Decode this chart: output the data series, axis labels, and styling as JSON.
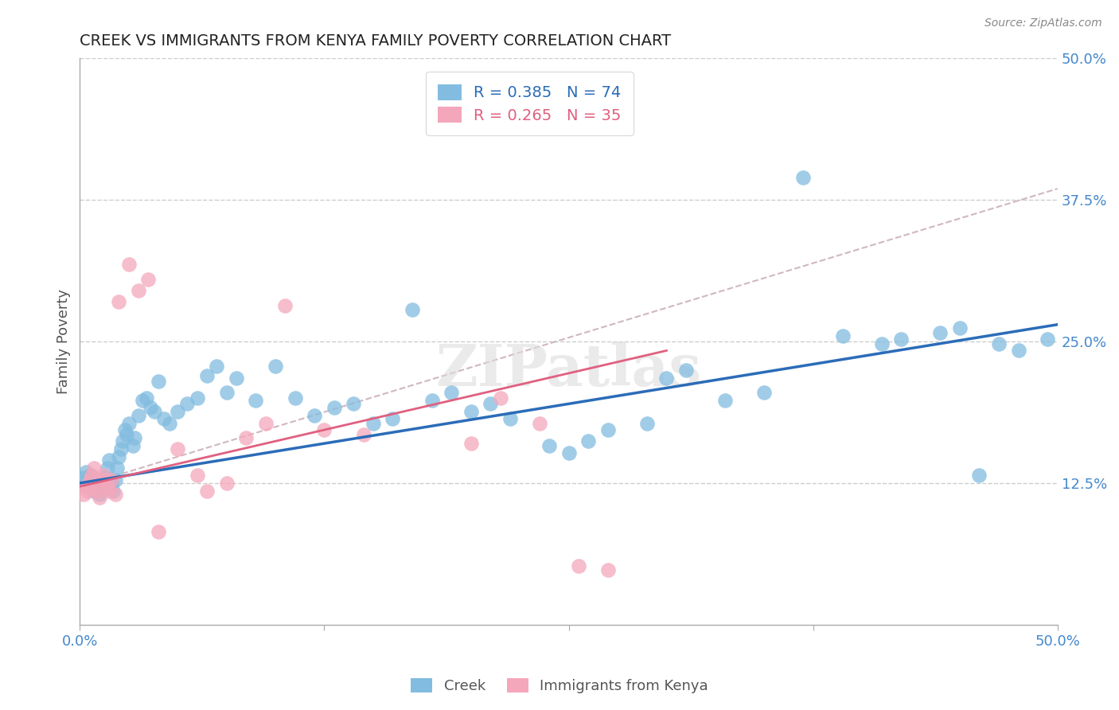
{
  "title": "CREEK VS IMMIGRANTS FROM KENYA FAMILY POVERTY CORRELATION CHART",
  "source": "Source: ZipAtlas.com",
  "ylabel": "Family Poverty",
  "xlim": [
    0.0,
    0.5
  ],
  "ylim": [
    0.0,
    0.5
  ],
  "creek_color": "#82bce0",
  "kenya_color": "#f4a7bb",
  "creek_line_color": "#2b6cb8",
  "kenya_line_color": "#e06080",
  "dashed_line_color": "#ccb0b8",
  "creek_R": 0.385,
  "creek_N": 74,
  "kenya_R": 0.265,
  "kenya_N": 35,
  "title_color": "#222222",
  "tick_color": "#4488cc",
  "grid_color": "#cccccc",
  "background_color": "#ffffff",
  "watermark": "ZIPatlas",
  "creek_x": [
    0.002,
    0.003,
    0.004,
    0.005,
    0.006,
    0.007,
    0.008,
    0.009,
    0.01,
    0.011,
    0.012,
    0.013,
    0.014,
    0.015,
    0.016,
    0.017,
    0.018,
    0.019,
    0.02,
    0.021,
    0.022,
    0.023,
    0.024,
    0.025,
    0.027,
    0.028,
    0.03,
    0.032,
    0.034,
    0.036,
    0.038,
    0.04,
    0.043,
    0.046,
    0.05,
    0.055,
    0.06,
    0.065,
    0.07,
    0.075,
    0.08,
    0.09,
    0.1,
    0.11,
    0.12,
    0.13,
    0.14,
    0.15,
    0.16,
    0.17,
    0.18,
    0.19,
    0.2,
    0.21,
    0.22,
    0.24,
    0.25,
    0.26,
    0.27,
    0.29,
    0.3,
    0.31,
    0.33,
    0.35,
    0.37,
    0.39,
    0.41,
    0.42,
    0.44,
    0.45,
    0.46,
    0.47,
    0.48,
    0.495
  ],
  "creek_y": [
    0.13,
    0.135,
    0.128,
    0.132,
    0.122,
    0.118,
    0.125,
    0.12,
    0.115,
    0.128,
    0.122,
    0.13,
    0.138,
    0.145,
    0.125,
    0.118,
    0.128,
    0.138,
    0.148,
    0.155,
    0.162,
    0.172,
    0.168,
    0.178,
    0.158,
    0.165,
    0.185,
    0.198,
    0.2,
    0.192,
    0.188,
    0.215,
    0.182,
    0.178,
    0.188,
    0.195,
    0.2,
    0.22,
    0.228,
    0.205,
    0.218,
    0.198,
    0.228,
    0.2,
    0.185,
    0.192,
    0.195,
    0.178,
    0.182,
    0.278,
    0.198,
    0.205,
    0.188,
    0.195,
    0.182,
    0.158,
    0.152,
    0.162,
    0.172,
    0.178,
    0.218,
    0.225,
    0.198,
    0.205,
    0.395,
    0.255,
    0.248,
    0.252,
    0.258,
    0.262,
    0.132,
    0.248,
    0.242,
    0.252
  ],
  "kenya_x": [
    0.002,
    0.003,
    0.004,
    0.005,
    0.006,
    0.007,
    0.008,
    0.009,
    0.01,
    0.011,
    0.012,
    0.013,
    0.014,
    0.015,
    0.016,
    0.018,
    0.02,
    0.025,
    0.03,
    0.035,
    0.04,
    0.05,
    0.06,
    0.065,
    0.075,
    0.085,
    0.095,
    0.105,
    0.125,
    0.145,
    0.2,
    0.215,
    0.235,
    0.255,
    0.27
  ],
  "kenya_y": [
    0.115,
    0.122,
    0.118,
    0.128,
    0.132,
    0.138,
    0.122,
    0.118,
    0.112,
    0.128,
    0.132,
    0.128,
    0.122,
    0.118,
    0.128,
    0.115,
    0.285,
    0.318,
    0.295,
    0.305,
    0.082,
    0.155,
    0.132,
    0.118,
    0.125,
    0.165,
    0.178,
    0.282,
    0.172,
    0.168,
    0.16,
    0.2,
    0.178,
    0.052,
    0.048
  ],
  "blue_line_x0": 0.0,
  "blue_line_y0": 0.125,
  "blue_line_x1": 0.5,
  "blue_line_y1": 0.265,
  "pink_line_x0": 0.0,
  "pink_line_y0": 0.122,
  "pink_line_x1": 0.3,
  "pink_line_y1": 0.242,
  "dash_line_x0": 0.0,
  "dash_line_y0": 0.122,
  "dash_line_x1": 0.5,
  "dash_line_y1": 0.385
}
